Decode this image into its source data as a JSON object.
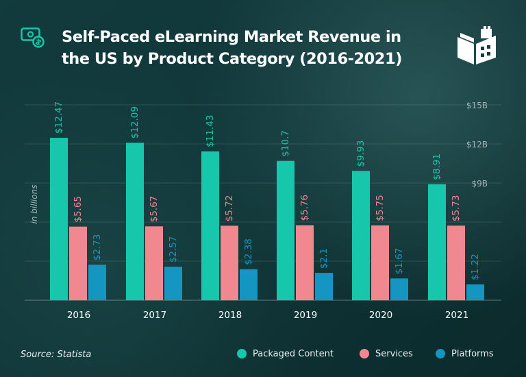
{
  "title": "Self-Paced eLearning Market Revenue in the US by Product Category (2016-2021)",
  "source": "Source: Statista",
  "icons": {
    "top_left": "money-chart-icon",
    "top_right": "book-building-logo"
  },
  "colors": {
    "background": "#113638",
    "packaged_content": "#16c7ac",
    "services": "#f2888f",
    "platforms": "#1596c2",
    "text": "#ffffff",
    "axis_label": "#9fb4b4"
  },
  "chart_data": {
    "type": "bar",
    "title": "Self-Paced eLearning Market Revenue in the US by Product Category (2016-2021)",
    "categories": [
      "2016",
      "2017",
      "2018",
      "2019",
      "2020",
      "2021"
    ],
    "series": [
      {
        "name": "Packaged Content",
        "color": "#16c7ac",
        "values": [
          12.47,
          12.09,
          11.43,
          10.7,
          9.93,
          8.91
        ],
        "labels": [
          "$12.47",
          "$12.09",
          "$11.43",
          "$10.7",
          "$9.93",
          "$8.91"
        ]
      },
      {
        "name": "Services",
        "color": "#f2888f",
        "values": [
          5.65,
          5.67,
          5.72,
          5.76,
          5.75,
          5.73
        ],
        "labels": [
          "$5.65",
          "$5.67",
          "$5.72",
          "$5.76",
          "$5.75",
          "$5.73"
        ]
      },
      {
        "name": "Platforms",
        "color": "#1596c2",
        "values": [
          2.73,
          2.57,
          2.38,
          2.1,
          1.67,
          1.22
        ],
        "labels": [
          "$2.73",
          "$2.57",
          "$2.38",
          "$2.1",
          "$1.67",
          "$1.22"
        ]
      }
    ],
    "ylabel": "in billions",
    "yticks": [
      9,
      12,
      15
    ],
    "ytick_labels": [
      "$9B",
      "$12B",
      "$15B"
    ],
    "ylim": [
      0,
      15
    ],
    "grid": true,
    "legend_position": "bottom-right",
    "source": "Source: Statista"
  }
}
